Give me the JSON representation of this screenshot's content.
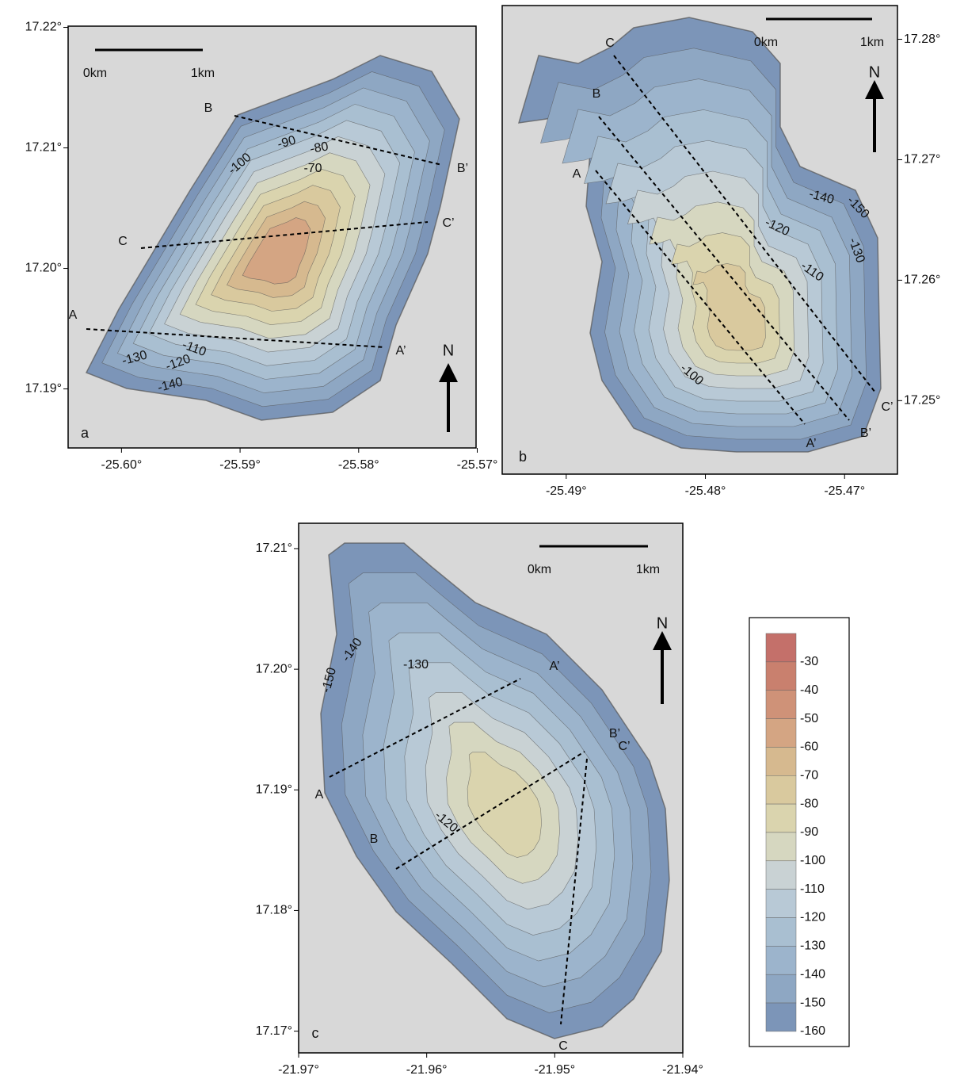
{
  "panels": [
    {
      "label": "a",
      "xlim": [
        -25.6045,
        -25.5701
      ],
      "ylim": [
        17.1851,
        17.2201
      ],
      "xticks": [
        {
          "value": -25.6,
          "label": "-25.60°"
        },
        {
          "value": -25.59,
          "label": "-25.59°"
        },
        {
          "value": -25.58,
          "label": "-25.58°"
        },
        {
          "value": -25.57,
          "label": "-25.57°"
        }
      ],
      "yticks": [
        {
          "value": 17.22,
          "label": "17.22°"
        },
        {
          "value": 17.21,
          "label": "17.21°"
        },
        {
          "value": 17.2,
          "label": "17.20°"
        },
        {
          "value": 17.19,
          "label": "17.19°"
        }
      ],
      "scale_bar": [
        "0km",
        "1km"
      ],
      "north": "N",
      "profile_labels": [
        "A",
        "A’",
        "B",
        "B’",
        "C",
        "C’"
      ],
      "contour_labels": [
        -100,
        -90,
        -80,
        -70,
        -110,
        -130,
        -120,
        -140
      ]
    },
    {
      "label": "b",
      "xlim": [
        -25.4946,
        -25.4662
      ],
      "ylim": [
        17.2439,
        17.2828
      ],
      "xticks": [
        {
          "value": -25.49,
          "label": "-25.49°"
        },
        {
          "value": -25.48,
          "label": "-25.48°"
        },
        {
          "value": -25.47,
          "label": "-25.47°"
        }
      ],
      "yticks": [
        {
          "value": 17.28,
          "label": "17.28°"
        },
        {
          "value": 17.27,
          "label": "17.27°"
        },
        {
          "value": 17.26,
          "label": "17.26°"
        },
        {
          "value": 17.25,
          "label": "17.25°"
        }
      ],
      "scale_bar": [
        "0km",
        "1km"
      ],
      "north": "N",
      "profile_labels": [
        "C",
        "B",
        "A",
        "A’",
        "B’",
        "C’"
      ],
      "contour_labels": [
        -140,
        -150,
        -130,
        -120,
        -110,
        -100
      ]
    },
    {
      "label": "c",
      "xlim": [
        -21.97,
        -21.94
      ],
      "ylim": [
        17.1682,
        17.2121
      ],
      "xticks": [
        {
          "value": -21.97,
          "label": "-21.97°"
        },
        {
          "value": -21.96,
          "label": "-21.96°"
        },
        {
          "value": -21.95,
          "label": "-21.95°"
        },
        {
          "value": -21.94,
          "label": "-21.94°"
        }
      ],
      "yticks": [
        {
          "value": 17.21,
          "label": "17.21°"
        },
        {
          "value": 17.2,
          "label": "17.20°"
        },
        {
          "value": 17.19,
          "label": "17.19°"
        },
        {
          "value": 17.18,
          "label": "17.18°"
        },
        {
          "value": 17.17,
          "label": "17.17°"
        }
      ],
      "scale_bar": [
        "0km",
        "1km"
      ],
      "north": "N",
      "profile_labels": [
        "A",
        "A’",
        "B",
        "B’",
        "C’",
        "C"
      ],
      "contour_labels": [
        -150,
        -140,
        -130,
        -120
      ]
    }
  ],
  "legend": {
    "values": [
      -30,
      -40,
      -50,
      -60,
      -70,
      -80,
      -90,
      -100,
      -110,
      -120,
      -130,
      -140,
      -150,
      -160
    ],
    "colors": [
      "#c4706a",
      "#c9806e",
      "#cf9278",
      "#d4a583",
      "#d6b98f",
      "#d9c99e",
      "#dad4ae",
      "#d6d7c0",
      "#c9d2d4",
      "#b8c9d6",
      "#a9bfd1",
      "#9cb4cc",
      "#8ea7c3",
      "#7c95b8"
    ]
  }
}
